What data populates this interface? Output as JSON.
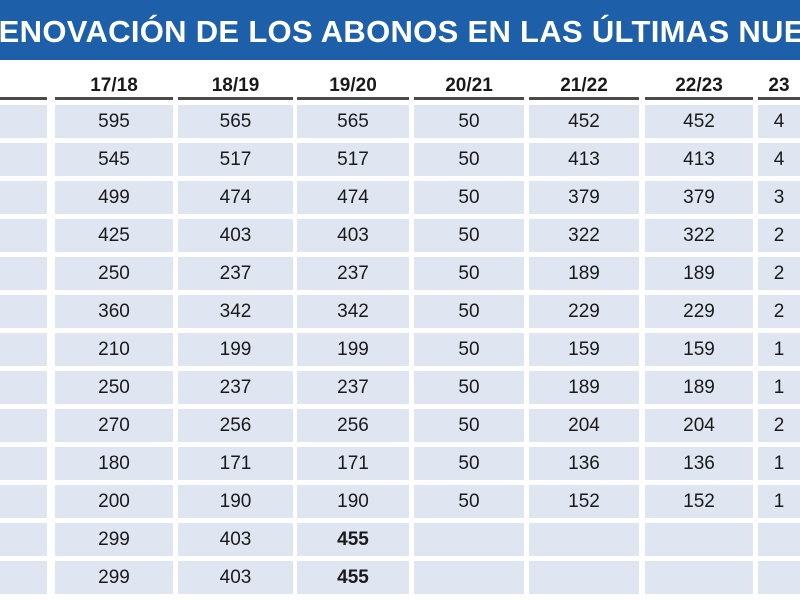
{
  "title": "RENOVACIÓN DE LOS ABONOS EN LAS ÚLTIMAS NUEVE",
  "columns": [
    "",
    "17/18",
    "18/19",
    "19/20",
    "20/21",
    "21/22",
    "22/23",
    "23"
  ],
  "rows": [
    [
      "",
      "595",
      "565",
      "565",
      "50",
      "452",
      "452",
      "4"
    ],
    [
      "",
      "545",
      "517",
      "517",
      "50",
      "413",
      "413",
      "4"
    ],
    [
      "",
      "499",
      "474",
      "474",
      "50",
      "379",
      "379",
      "3"
    ],
    [
      "",
      "425",
      "403",
      "403",
      "50",
      "322",
      "322",
      "2"
    ],
    [
      "",
      "250",
      "237",
      "237",
      "50",
      "189",
      "189",
      "2"
    ],
    [
      "",
      "360",
      "342",
      "342",
      "50",
      "229",
      "229",
      "2"
    ],
    [
      "",
      "210",
      "199",
      "199",
      "50",
      "159",
      "159",
      "1"
    ],
    [
      "",
      "250",
      "237",
      "237",
      "50",
      "189",
      "189",
      "1"
    ],
    [
      "",
      "270",
      "256",
      "256",
      "50",
      "204",
      "204",
      "2"
    ],
    [
      "",
      "180",
      "171",
      "171",
      "50",
      "136",
      "136",
      "1"
    ],
    [
      "",
      "200",
      "190",
      "190",
      "50",
      "152",
      "152",
      "1"
    ],
    [
      "",
      "299",
      "403",
      "455",
      "",
      "",
      "",
      ""
    ],
    [
      "",
      "299",
      "403",
      "455",
      "",
      "",
      "",
      ""
    ]
  ],
  "bold_cells": [
    [
      11,
      3
    ],
    [
      12,
      3
    ]
  ],
  "colors": {
    "banner": "#1d5fa9",
    "cell_fill": "#dfe6f1"
  }
}
